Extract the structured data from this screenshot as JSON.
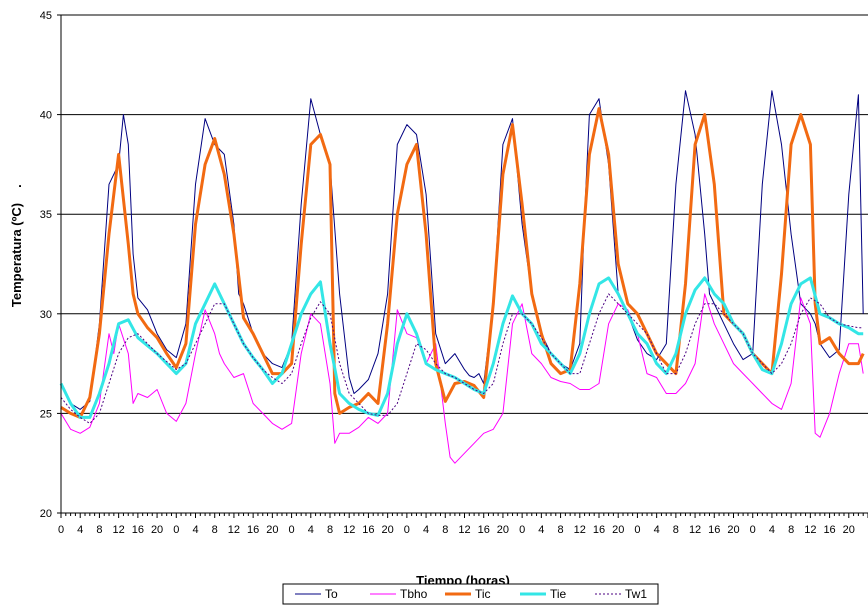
{
  "chart_data": {
    "type": "line",
    "title": "",
    "xlabel": "Tiempo (horas)",
    "ylabel": "Temperatura (ºC)",
    "ylabel_mark": ".",
    "ylim": [
      20,
      45
    ],
    "yticks": [
      20,
      25,
      30,
      35,
      40,
      45
    ],
    "grid": "horizontal",
    "legend": "bottom",
    "x_unit": "hours",
    "days": 7,
    "x_tick_hours": [
      0,
      4,
      8,
      12,
      16,
      20
    ],
    "x_tick_labels": [
      "0",
      "4",
      "8",
      "12",
      "16",
      "20",
      "0",
      "4",
      "8",
      "12",
      "16",
      "20",
      "0",
      "4",
      "8",
      "12",
      "16",
      "20",
      "0",
      "4",
      "8",
      "12",
      "16",
      "20",
      "0",
      "4",
      "8",
      "12",
      "16",
      "20",
      "0",
      "4",
      "8",
      "12",
      "16",
      "20",
      "0",
      "4",
      "8",
      "12",
      "16",
      "20"
    ],
    "series": [
      {
        "name": "To",
        "color": "#000080",
        "style": "solid",
        "width": 1,
        "x": [
          0,
          2,
          4,
          6,
          8,
          10,
          12,
          13,
          14,
          15,
          16,
          18,
          20,
          22,
          24,
          26,
          28,
          30,
          32,
          34,
          36,
          37,
          38,
          40,
          42,
          44,
          46,
          48,
          50,
          52,
          54,
          56,
          58,
          60,
          61,
          62,
          64,
          66,
          68,
          70,
          72,
          74,
          76,
          78,
          80,
          82,
          84,
          85,
          86,
          87,
          88,
          90,
          92,
          94,
          96,
          98,
          100,
          102,
          104,
          106,
          108,
          109,
          110,
          112,
          114,
          116,
          118,
          120,
          122,
          124,
          126,
          128,
          130,
          132,
          134,
          135,
          136,
          138,
          140,
          142,
          144,
          146,
          148,
          150,
          152,
          154,
          156,
          157,
          158,
          160,
          162,
          164,
          166,
          167
        ],
        "y": [
          26.5,
          25.5,
          25.2,
          25.6,
          29.5,
          36.5,
          37.5,
          40.0,
          38.5,
          33.0,
          30.8,
          30.2,
          29.0,
          28.2,
          27.8,
          29.5,
          36.5,
          39.8,
          38.5,
          38.0,
          34.5,
          31.0,
          30.5,
          29.0,
          28.0,
          27.5,
          27.3,
          28.5,
          35.5,
          40.8,
          39.0,
          37.5,
          31.0,
          26.8,
          26.0,
          26.2,
          26.7,
          28.0,
          31.0,
          38.5,
          39.5,
          39.0,
          36.0,
          29.0,
          27.5,
          28.0,
          27.2,
          26.9,
          26.8,
          27.0,
          26.5,
          30.5,
          38.5,
          39.8,
          34.5,
          31.0,
          29.0,
          28.0,
          27.5,
          27.2,
          28.5,
          35.0,
          40.0,
          40.8,
          37.5,
          31.0,
          30.0,
          28.7,
          28.0,
          27.7,
          28.5,
          36.5,
          41.2,
          39.0,
          34.0,
          31.0,
          30.5,
          29.5,
          28.5,
          27.7,
          28.0,
          36.5,
          41.2,
          38.5,
          34.0,
          30.5,
          30.0,
          29.5,
          28.5,
          27.8,
          28.2,
          36.0,
          41.0,
          30.0
        ]
      },
      {
        "name": "Tbho",
        "color": "#FF00FF",
        "style": "solid",
        "width": 1,
        "x": [
          0,
          2,
          4,
          6,
          8,
          10,
          11,
          12,
          14,
          15,
          16,
          18,
          20,
          22,
          24,
          26,
          28,
          30,
          32,
          33,
          34,
          36,
          38,
          40,
          42,
          44,
          46,
          48,
          50,
          52,
          54,
          56,
          57,
          58,
          60,
          62,
          64,
          66,
          68,
          70,
          72,
          74,
          76,
          78,
          80,
          81,
          82,
          84,
          86,
          88,
          90,
          92,
          94,
          96,
          98,
          100,
          102,
          104,
          106,
          108,
          110,
          112,
          114,
          116,
          118,
          120,
          122,
          124,
          126,
          128,
          130,
          132,
          134,
          136,
          138,
          140,
          142,
          144,
          146,
          148,
          150,
          152,
          154,
          156,
          157,
          158,
          160,
          162,
          164,
          166,
          167
        ],
        "y": [
          25.0,
          24.2,
          24.0,
          24.3,
          25.5,
          29.0,
          28.0,
          29.5,
          28.0,
          25.5,
          26.0,
          25.8,
          26.2,
          25.0,
          24.6,
          25.5,
          28.0,
          30.2,
          29.0,
          28.0,
          27.5,
          26.8,
          27.0,
          25.5,
          25.0,
          24.5,
          24.2,
          24.5,
          28.0,
          30.0,
          29.5,
          26.5,
          23.5,
          24.0,
          24.0,
          24.3,
          24.8,
          24.5,
          25.0,
          30.2,
          29.0,
          28.8,
          27.5,
          28.5,
          24.5,
          22.8,
          22.5,
          23.0,
          23.5,
          24.0,
          24.2,
          25.0,
          29.5,
          30.5,
          28.0,
          27.5,
          26.8,
          26.6,
          26.5,
          26.2,
          26.2,
          26.5,
          29.5,
          30.5,
          30.2,
          29.0,
          27.0,
          26.8,
          26.0,
          26.0,
          26.5,
          27.5,
          31.0,
          29.5,
          28.5,
          27.5,
          27.0,
          26.5,
          26.0,
          25.5,
          25.2,
          26.5,
          30.8,
          29.5,
          24.0,
          23.8,
          25.0,
          27.0,
          28.5,
          28.5,
          27.0
        ]
      },
      {
        "name": "Tic",
        "color": "#F26A12",
        "style": "solid",
        "width": 3,
        "x": [
          0,
          2,
          4,
          6,
          8,
          10,
          12,
          14,
          15,
          16,
          18,
          20,
          22,
          24,
          26,
          28,
          30,
          32,
          34,
          36,
          38,
          40,
          42,
          44,
          46,
          48,
          50,
          52,
          54,
          56,
          57,
          58,
          60,
          62,
          64,
          66,
          68,
          70,
          72,
          74,
          76,
          78,
          80,
          82,
          84,
          86,
          88,
          90,
          92,
          94,
          96,
          98,
          100,
          102,
          104,
          106,
          108,
          110,
          112,
          114,
          116,
          118,
          120,
          122,
          124,
          126,
          128,
          130,
          132,
          134,
          136,
          138,
          140,
          142,
          144,
          146,
          148,
          150,
          152,
          154,
          156,
          157,
          158,
          160,
          162,
          164,
          166,
          167
        ],
        "y": [
          25.3,
          25.0,
          24.8,
          25.8,
          29.0,
          34.0,
          38.0,
          33.5,
          31.0,
          30.0,
          29.3,
          28.8,
          28.0,
          27.3,
          28.5,
          34.5,
          37.5,
          38.8,
          37.0,
          34.0,
          29.8,
          29.0,
          28.0,
          27.0,
          27.0,
          27.5,
          33.5,
          38.5,
          39.0,
          37.5,
          26.0,
          25.0,
          25.3,
          25.5,
          26.0,
          25.5,
          29.5,
          35.0,
          37.5,
          38.5,
          34.0,
          27.5,
          25.6,
          26.5,
          26.6,
          26.4,
          25.8,
          30.5,
          37.0,
          39.5,
          35.5,
          31.0,
          29.0,
          27.5,
          27.0,
          27.2,
          31.5,
          38.0,
          40.3,
          38.0,
          32.5,
          30.5,
          30.0,
          29.0,
          28.0,
          27.5,
          27.0,
          31.5,
          38.5,
          40.0,
          36.5,
          30.0,
          29.5,
          29.0,
          28.0,
          27.5,
          27.0,
          32.0,
          38.5,
          40.0,
          38.5,
          30.5,
          28.5,
          28.8,
          28.0,
          27.5,
          27.5,
          28.0
        ]
      },
      {
        "name": "Tie",
        "color": "#33E6E6",
        "style": "solid",
        "width": 3,
        "x": [
          0,
          2,
          4,
          6,
          8,
          10,
          12,
          14,
          16,
          18,
          20,
          22,
          24,
          26,
          28,
          30,
          32,
          34,
          36,
          38,
          40,
          42,
          44,
          46,
          48,
          50,
          52,
          54,
          56,
          58,
          60,
          62,
          64,
          66,
          68,
          70,
          72,
          74,
          76,
          78,
          80,
          82,
          84,
          86,
          88,
          90,
          92,
          94,
          96,
          98,
          100,
          102,
          104,
          106,
          108,
          110,
          112,
          114,
          116,
          118,
          120,
          122,
          124,
          126,
          128,
          130,
          132,
          134,
          136,
          138,
          140,
          142,
          144,
          146,
          148,
          150,
          152,
          154,
          156,
          158,
          160,
          162,
          164,
          166,
          167
        ],
        "y": [
          26.5,
          25.5,
          24.8,
          24.8,
          26.0,
          27.5,
          29.5,
          29.7,
          28.8,
          28.4,
          28.0,
          27.5,
          27.0,
          27.5,
          29.5,
          30.5,
          31.5,
          30.5,
          29.5,
          28.5,
          27.8,
          27.2,
          26.5,
          27.0,
          28.5,
          30.0,
          31.0,
          31.6,
          28.5,
          26.0,
          25.5,
          25.2,
          25.0,
          24.9,
          26.0,
          28.5,
          30.0,
          29.0,
          27.5,
          27.2,
          27.0,
          26.8,
          26.5,
          26.2,
          26.0,
          27.5,
          29.5,
          30.9,
          30.0,
          29.5,
          28.5,
          28.0,
          27.5,
          27.0,
          28.0,
          30.0,
          31.5,
          31.8,
          31.0,
          30.0,
          29.0,
          28.5,
          27.5,
          27.0,
          28.0,
          30.0,
          31.2,
          31.8,
          31.0,
          30.5,
          29.5,
          29.0,
          28.0,
          27.2,
          27.0,
          28.5,
          30.5,
          31.5,
          31.8,
          30.0,
          29.8,
          29.5,
          29.3,
          29.0,
          29.0
        ]
      },
      {
        "name": "Tw1",
        "color": "#4B0082",
        "style": "dotted",
        "width": 1,
        "x": [
          0,
          2,
          4,
          6,
          8,
          10,
          12,
          14,
          16,
          18,
          20,
          22,
          24,
          26,
          28,
          30,
          32,
          34,
          36,
          38,
          40,
          42,
          44,
          46,
          48,
          50,
          52,
          54,
          56,
          58,
          60,
          62,
          64,
          66,
          68,
          70,
          72,
          74,
          76,
          78,
          80,
          82,
          84,
          86,
          88,
          90,
          92,
          94,
          96,
          98,
          100,
          102,
          104,
          106,
          108,
          110,
          112,
          114,
          116,
          118,
          120,
          122,
          124,
          126,
          128,
          130,
          132,
          134,
          136,
          138,
          140,
          142,
          144,
          146,
          148,
          150,
          152,
          154,
          156,
          158,
          160,
          162,
          164,
          166,
          167
        ],
        "y": [
          25.8,
          25.2,
          24.8,
          24.5,
          25.0,
          26.5,
          28.0,
          28.8,
          29.0,
          28.5,
          28.0,
          27.6,
          27.2,
          27.5,
          28.5,
          29.5,
          30.5,
          30.5,
          29.5,
          28.5,
          27.8,
          27.2,
          26.8,
          26.5,
          27.0,
          28.5,
          29.8,
          30.6,
          30.0,
          27.5,
          26.0,
          25.5,
          25.0,
          24.9,
          24.9,
          25.5,
          27.0,
          28.5,
          28.2,
          27.5,
          27.0,
          26.8,
          26.5,
          26.2,
          26.0,
          26.5,
          28.5,
          30.0,
          30.0,
          29.5,
          28.8,
          28.0,
          27.5,
          27.0,
          27.0,
          28.5,
          30.0,
          31.0,
          30.5,
          30.0,
          29.5,
          29.0,
          28.0,
          27.0,
          27.0,
          28.0,
          29.5,
          30.5,
          30.5,
          30.0,
          29.5,
          29.0,
          28.0,
          27.5,
          27.0,
          27.5,
          28.5,
          30.0,
          30.8,
          30.5,
          29.8,
          29.5,
          29.4,
          29.3,
          29.3
        ]
      }
    ]
  }
}
